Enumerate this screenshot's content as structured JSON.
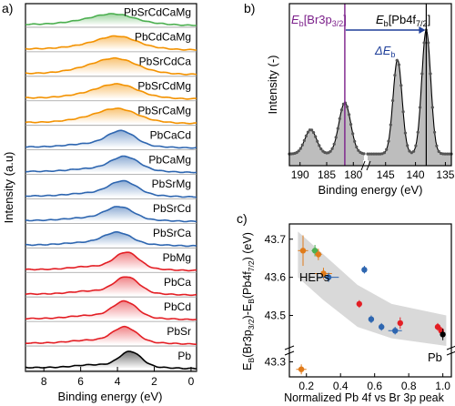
{
  "chart_data": [
    {
      "panel": "a)",
      "type": "line",
      "xlabel": "Binding energy (eV)",
      "ylabel": "Intensity (a.u)",
      "xlim": [
        9,
        -0.3
      ],
      "x_reversed": true,
      "x_ticks": [
        "8",
        "6",
        "4",
        "2",
        "0"
      ],
      "x_tick_values": [
        8,
        6,
        4,
        2,
        0
      ],
      "series": [
        {
          "name": "PbSrCdCaMg",
          "color": "#4caf50",
          "peak_eV": 4.2,
          "width_eV": 1.6,
          "rel_height": 0.45
        },
        {
          "name": "PbCdCaMg",
          "color": "#f39200",
          "peak_eV": 4.0,
          "width_eV": 1.5,
          "rel_height": 0.55
        },
        {
          "name": "PbSrCdCa",
          "color": "#f39200",
          "peak_eV": 4.1,
          "width_eV": 1.6,
          "rel_height": 0.65
        },
        {
          "name": "PbSrCdMg",
          "color": "#f39200",
          "peak_eV": 4.0,
          "width_eV": 1.5,
          "rel_height": 0.6
        },
        {
          "name": "PbSrCaMg",
          "color": "#f39200",
          "peak_eV": 4.0,
          "width_eV": 1.5,
          "rel_height": 0.6
        },
        {
          "name": "PbCaCd",
          "color": "#2e66b0",
          "peak_eV": 3.8,
          "width_eV": 1.1,
          "rel_height": 0.7
        },
        {
          "name": "PbCaMg",
          "color": "#2e66b0",
          "peak_eV": 3.6,
          "width_eV": 1.1,
          "rel_height": 0.65
        },
        {
          "name": "PbSrMg",
          "color": "#2e66b0",
          "peak_eV": 3.7,
          "width_eV": 1.1,
          "rel_height": 0.65
        },
        {
          "name": "PbSrCd",
          "color": "#2e66b0",
          "peak_eV": 3.9,
          "width_eV": 1.1,
          "rel_height": 0.6
        },
        {
          "name": "PbSrCa",
          "color": "#2e66b0",
          "peak_eV": 4.0,
          "width_eV": 1.1,
          "rel_height": 0.55
        },
        {
          "name": "PbMg",
          "color": "#e31e24",
          "peak_eV": 3.5,
          "width_eV": 0.95,
          "rel_height": 0.75
        },
        {
          "name": "PbCa",
          "color": "#e31e24",
          "peak_eV": 3.5,
          "width_eV": 0.95,
          "rel_height": 0.75
        },
        {
          "name": "PbCd",
          "color": "#e31e24",
          "peak_eV": 3.6,
          "width_eV": 0.95,
          "rel_height": 0.75
        },
        {
          "name": "PbSr",
          "color": "#e31e24",
          "peak_eV": 3.6,
          "width_eV": 0.95,
          "rel_height": 0.7
        },
        {
          "name": "Pb",
          "color": "#000000",
          "peak_eV": 3.3,
          "width_eV": 0.85,
          "rel_height": 0.7
        }
      ]
    },
    {
      "panel": "b)",
      "type": "line",
      "xlabel": "Binding energy (eV)",
      "ylabel": "Intensity (-)",
      "x_ticks": [
        "190",
        "185",
        "180",
        "145",
        "140",
        "135"
      ],
      "x_broken": true,
      "segments": [
        {
          "xlim": [
            192,
            178
          ],
          "peaks": [
            {
              "x": 188.0,
              "height": 0.18,
              "sigma": 1.1
            },
            {
              "x": 181.6,
              "height": 0.38,
              "sigma": 1.1
            }
          ]
        },
        {
          "xlim": [
            148,
            134
          ],
          "peaks": [
            {
              "x": 143.0,
              "height": 0.7,
              "sigma": 0.75
            },
            {
              "x": 138.2,
              "height": 0.92,
              "sigma": 0.75
            }
          ]
        }
      ],
      "annotations": {
        "br_label": "E",
        "br_sub": "b",
        "br_bracket": "[Br3p",
        "br_sub2": "3/2",
        "br_close": "]",
        "pb_label": "E",
        "pb_sub": "b",
        "pb_bracket": "[Pb4f",
        "pb_sub2": "7/2",
        "pb_close": "]",
        "delta_label": "ΔE",
        "delta_sub": "b"
      },
      "colors": {
        "br_line": "#7b1f8a",
        "pb_line": "#000000",
        "arrow": "#1f3f99",
        "fill": "#bdbdbd"
      }
    },
    {
      "panel": "c)",
      "type": "scatter",
      "xlabel": "Normalized Pb 4f vs Br 3p peak",
      "ylabel": "E_B(Br3p_3/2)-E_B(Pb4f_7/2) (eV)",
      "xlim": [
        0.1,
        1.05
      ],
      "x_ticks": [
        "0.2",
        "0.4",
        "0.6",
        "0.8",
        "1.0"
      ],
      "x_tick_values": [
        0.2,
        0.4,
        0.6,
        0.8,
        1.0
      ],
      "y_ticks": [
        "43.7",
        "43.6",
        "43.5",
        "43.3"
      ],
      "y_tick_values": [
        43.7,
        43.6,
        43.5,
        43.3
      ],
      "y_broken": true,
      "labels": {
        "heps": "HEPs",
        "pb": "Pb"
      },
      "points": [
        {
          "x": 0.18,
          "y": 43.67,
          "xerr": 0.03,
          "yerr": 0.04,
          "color": "#e07b1a"
        },
        {
          "x": 0.17,
          "y": 43.24,
          "xerr": 0.03,
          "yerr": 0.04,
          "color": "#e07b1a"
        },
        {
          "x": 0.25,
          "y": 43.67,
          "xerr": 0.02,
          "yerr": 0.015,
          "color": "#4caf50"
        },
        {
          "x": 0.27,
          "y": 43.66,
          "xerr": 0.02,
          "yerr": 0.015,
          "color": "#e07b1a"
        },
        {
          "x": 0.3,
          "y": 43.61,
          "xerr": 0.05,
          "yerr": 0.015,
          "color": "#e07b1a"
        },
        {
          "x": 0.33,
          "y": 43.6,
          "xerr": 0.06,
          "yerr": 0.012,
          "color": "#2e66b0"
        },
        {
          "x": 0.54,
          "y": 43.62,
          "xerr": 0.01,
          "yerr": 0.01,
          "color": "#2e66b0"
        },
        {
          "x": 0.51,
          "y": 43.53,
          "xerr": 0.01,
          "yerr": 0.01,
          "color": "#e31e24"
        },
        {
          "x": 0.58,
          "y": 43.49,
          "xerr": 0.01,
          "yerr": 0.01,
          "color": "#2e66b0"
        },
        {
          "x": 0.64,
          "y": 43.47,
          "xerr": 0.01,
          "yerr": 0.01,
          "color": "#2e66b0"
        },
        {
          "x": 0.72,
          "y": 43.46,
          "xerr": 0.04,
          "yerr": 0.01,
          "color": "#2e66b0"
        },
        {
          "x": 0.75,
          "y": 43.48,
          "xerr": 0.01,
          "yerr": 0.015,
          "color": "#e31e24"
        },
        {
          "x": 0.97,
          "y": 43.47,
          "xerr": 0.01,
          "yerr": 0.01,
          "color": "#e31e24"
        },
        {
          "x": 0.99,
          "y": 43.46,
          "xerr": 0.01,
          "yerr": 0.01,
          "color": "#e31e24"
        },
        {
          "x": 1.0,
          "y": 43.45,
          "xerr": 0.01,
          "yerr": 0.015,
          "color": "#000000"
        }
      ],
      "band_color": "#d9d9d9"
    }
  ],
  "panel_labels": {
    "a": "a)",
    "b": "b)",
    "c": "c)"
  }
}
